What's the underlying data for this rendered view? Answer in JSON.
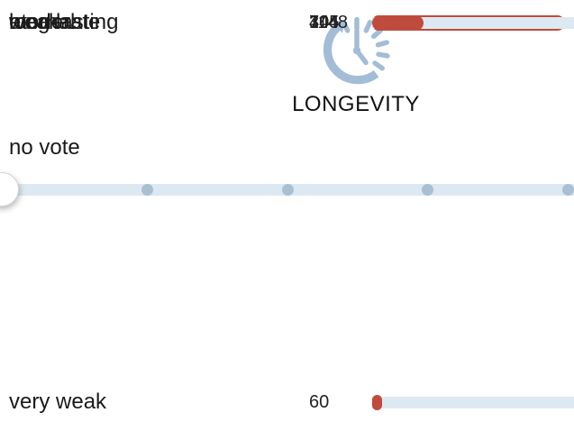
{
  "header": {
    "icon": "history-clock-icon",
    "title": "LONGEVITY"
  },
  "vote": {
    "no_vote_label": "no vote"
  },
  "results": {
    "rows": [
      {
        "label": "very weak",
        "value": 60
      },
      {
        "label": "weak",
        "value": 74
      },
      {
        "label": "moderate",
        "value": 404
      },
      {
        "label": "long lasting",
        "value": 1148
      },
      {
        "label": "eternal",
        "value": 305
      }
    ],
    "max_value": 1148
  },
  "chart_data": {
    "type": "bar",
    "orientation": "horizontal",
    "title": "LONGEVITY",
    "categories": [
      "very weak",
      "weak",
      "moderate",
      "long lasting",
      "eternal"
    ],
    "values": [
      60,
      74,
      404,
      1148,
      305
    ],
    "xlim": [
      0,
      1148
    ],
    "grid": false,
    "legend": false
  },
  "colors": {
    "bar_red": "#bf4b3c",
    "track_blue": "#dde9f2",
    "dot_blue": "#a9c0d3",
    "icon_blue": "#a3bdd6"
  }
}
